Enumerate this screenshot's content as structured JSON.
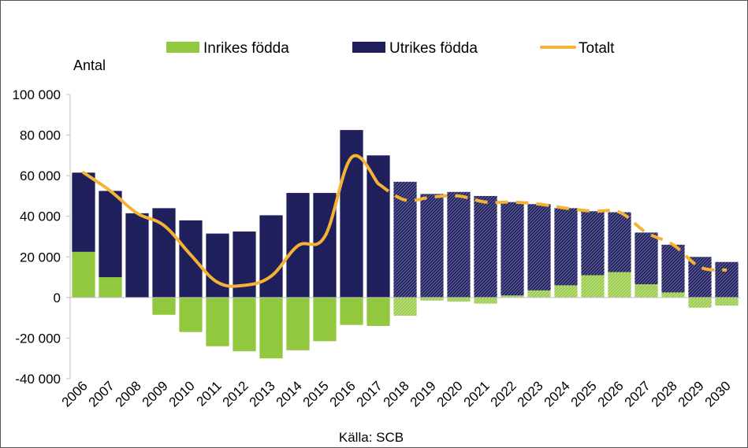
{
  "chart_data": {
    "type": "bar",
    "ylabel": "Antal",
    "source": "Källa: SCB",
    "ylim": [
      -40000,
      100000
    ],
    "yticks": [
      -40000,
      -20000,
      0,
      20000,
      40000,
      60000,
      80000,
      100000
    ],
    "ytick_labels": [
      "-40 000",
      "-20 000",
      "0",
      "20 000",
      "40 000",
      "60 000",
      "80 000",
      "100 000"
    ],
    "categories": [
      "2006",
      "2007",
      "2008",
      "2009",
      "2010",
      "2011",
      "2012",
      "2013",
      "2014",
      "2015",
      "2016",
      "2017",
      "2018",
      "2019",
      "2020",
      "2021",
      "2022",
      "2023",
      "2024",
      "2025",
      "2026",
      "2027",
      "2028",
      "2029",
      "2030"
    ],
    "projection_start_index": 12,
    "stacked": true,
    "legend_position": "top",
    "series": [
      {
        "name": "Inrikes födda",
        "kind": "bar",
        "color": "#92c83e",
        "values": [
          22500,
          10000,
          0,
          -8500,
          -17000,
          -24000,
          -26500,
          -30000,
          -26000,
          -21500,
          -13500,
          -14000,
          -9000,
          -1500,
          -2000,
          -3000,
          1000,
          3500,
          6000,
          11000,
          12500,
          6500,
          2500,
          -5000,
          -4000
        ]
      },
      {
        "name": "Utrikes födda",
        "kind": "bar",
        "color": "#1f1f5c",
        "values": [
          39000,
          42500,
          41500,
          44000,
          38000,
          31500,
          32500,
          40500,
          51500,
          51500,
          82500,
          70000,
          57000,
          51000,
          52000,
          50000,
          46000,
          42500,
          38000,
          31500,
          29500,
          25500,
          23500,
          20000,
          17500
        ]
      },
      {
        "name": "Totalt",
        "kind": "line",
        "color": "#f5b335",
        "values": [
          61500,
          52500,
          41500,
          35500,
          21000,
          7500,
          6000,
          10500,
          25500,
          30000,
          69000,
          56000,
          48000,
          49500,
          50000,
          47000,
          47000,
          46000,
          44000,
          42500,
          42000,
          32000,
          26000,
          15000,
          13500
        ]
      }
    ]
  }
}
